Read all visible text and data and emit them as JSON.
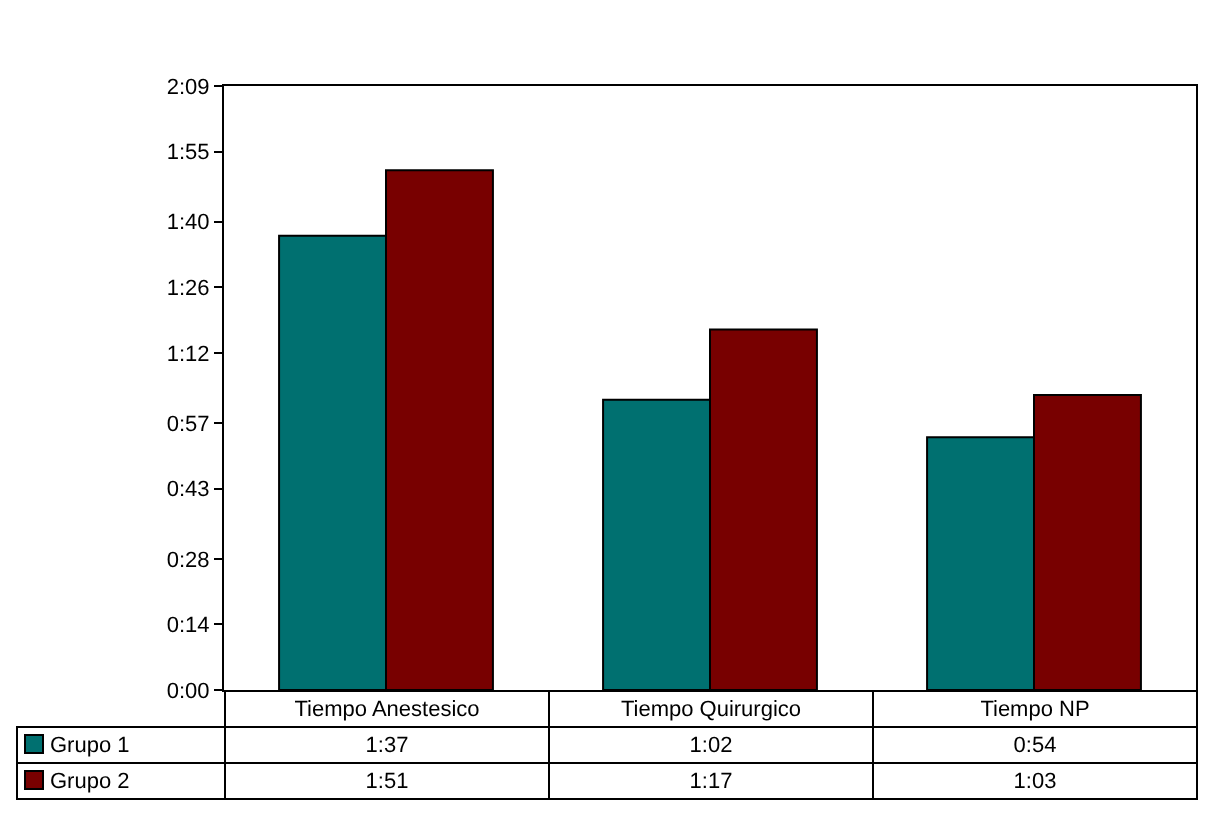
{
  "chart_data": {
    "type": "bar",
    "categories": [
      "Tiempo Anestesico",
      "Tiempo Quirurgico",
      "Tiempo NP"
    ],
    "series": [
      {
        "name": "Grupo 1",
        "color": "#007070",
        "values": [
          97,
          62,
          54
        ],
        "value_labels": [
          "1:37",
          "1:02",
          "0:54"
        ]
      },
      {
        "name": "Grupo 2",
        "color": "#780000",
        "values": [
          111,
          77,
          63
        ],
        "value_labels": [
          "1:51",
          "1:17",
          "1:03"
        ]
      }
    ],
    "ylim": [
      0,
      129
    ],
    "yticks": [
      {
        "value": 0,
        "label": "0:00"
      },
      {
        "value": 14,
        "label": "0:14"
      },
      {
        "value": 28,
        "label": "0:28"
      },
      {
        "value": 43,
        "label": "0:43"
      },
      {
        "value": 57,
        "label": "0:57"
      },
      {
        "value": 72,
        "label": "1:12"
      },
      {
        "value": 86,
        "label": "1:26"
      },
      {
        "value": 100,
        "label": "1:40"
      },
      {
        "value": 115,
        "label": "1:55"
      },
      {
        "value": 129,
        "label": "2:09"
      }
    ],
    "grid": false,
    "legend": "bottom left",
    "tick_labels": "y"
  }
}
